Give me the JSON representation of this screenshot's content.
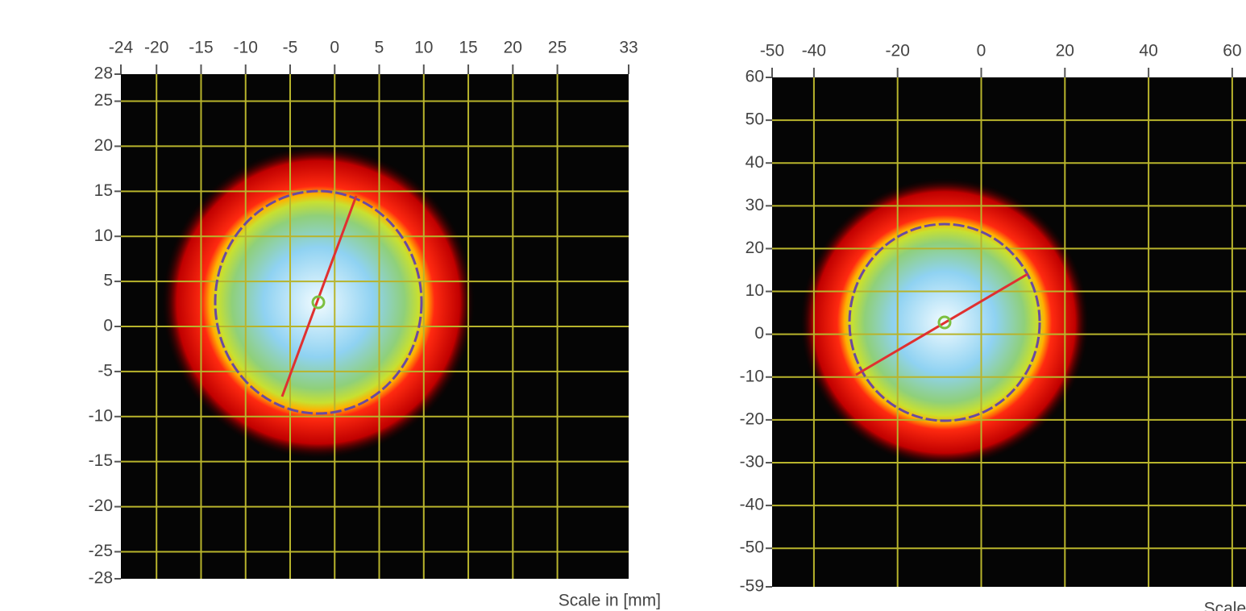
{
  "chart_data": [
    {
      "type": "heatmap",
      "caption": "Scale in [mm]",
      "grid": true,
      "xlim": [
        -24,
        33
      ],
      "ylim": [
        -28,
        28
      ],
      "xticks": [
        -24,
        -20,
        -15,
        -10,
        -5,
        0,
        5,
        10,
        15,
        20,
        25,
        33
      ],
      "yticks": [
        28,
        25,
        20,
        15,
        10,
        5,
        0,
        -5,
        -10,
        -15,
        -20,
        -25,
        -28
      ]
    },
    {
      "type": "heatmap",
      "caption": "Scale in [mm]",
      "grid": true,
      "xlim": [
        -50,
        70
      ],
      "ylim": [
        -59,
        60
      ],
      "xticks": [
        -50,
        -40,
        -20,
        0,
        20,
        40,
        60
      ],
      "yticks": [
        60,
        50,
        40,
        30,
        20,
        10,
        0,
        -10,
        -20,
        -30,
        -40,
        -50,
        -59
      ]
    }
  ]
}
